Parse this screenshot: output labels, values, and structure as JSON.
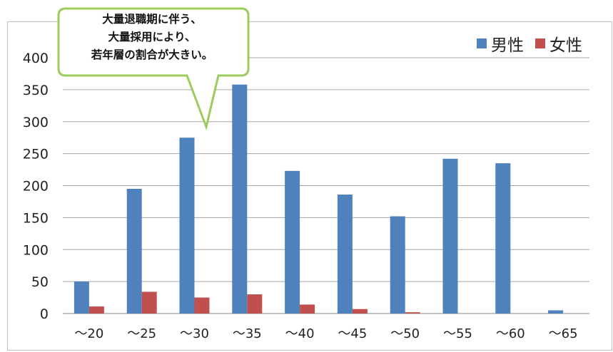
{
  "chart_data": {
    "type": "bar",
    "categories": [
      "～20",
      "～25",
      "～30",
      "～35",
      "～40",
      "～45",
      "～50",
      "～55",
      "～60",
      "～65"
    ],
    "series": [
      {
        "name": "男性",
        "color": "#4f81bd",
        "values": [
          50,
          195,
          275,
          358,
          223,
          186,
          152,
          242,
          235,
          5
        ]
      },
      {
        "name": "女性",
        "color": "#c0504d",
        "values": [
          11,
          34,
          25,
          30,
          14,
          7,
          2,
          0,
          0,
          0
        ]
      }
    ],
    "ylim": [
      0,
      400
    ],
    "yticks": [
      "0",
      "50",
      "100",
      "150",
      "200",
      "250",
      "300",
      "350",
      "400"
    ],
    "grid": true,
    "legend_position": "top-right",
    "annotation": {
      "lines": [
        "大量退職期に伴う、",
        "大量採用により、",
        "若年層の割合が大きい。"
      ],
      "border_color": "#9bcc5c"
    }
  }
}
